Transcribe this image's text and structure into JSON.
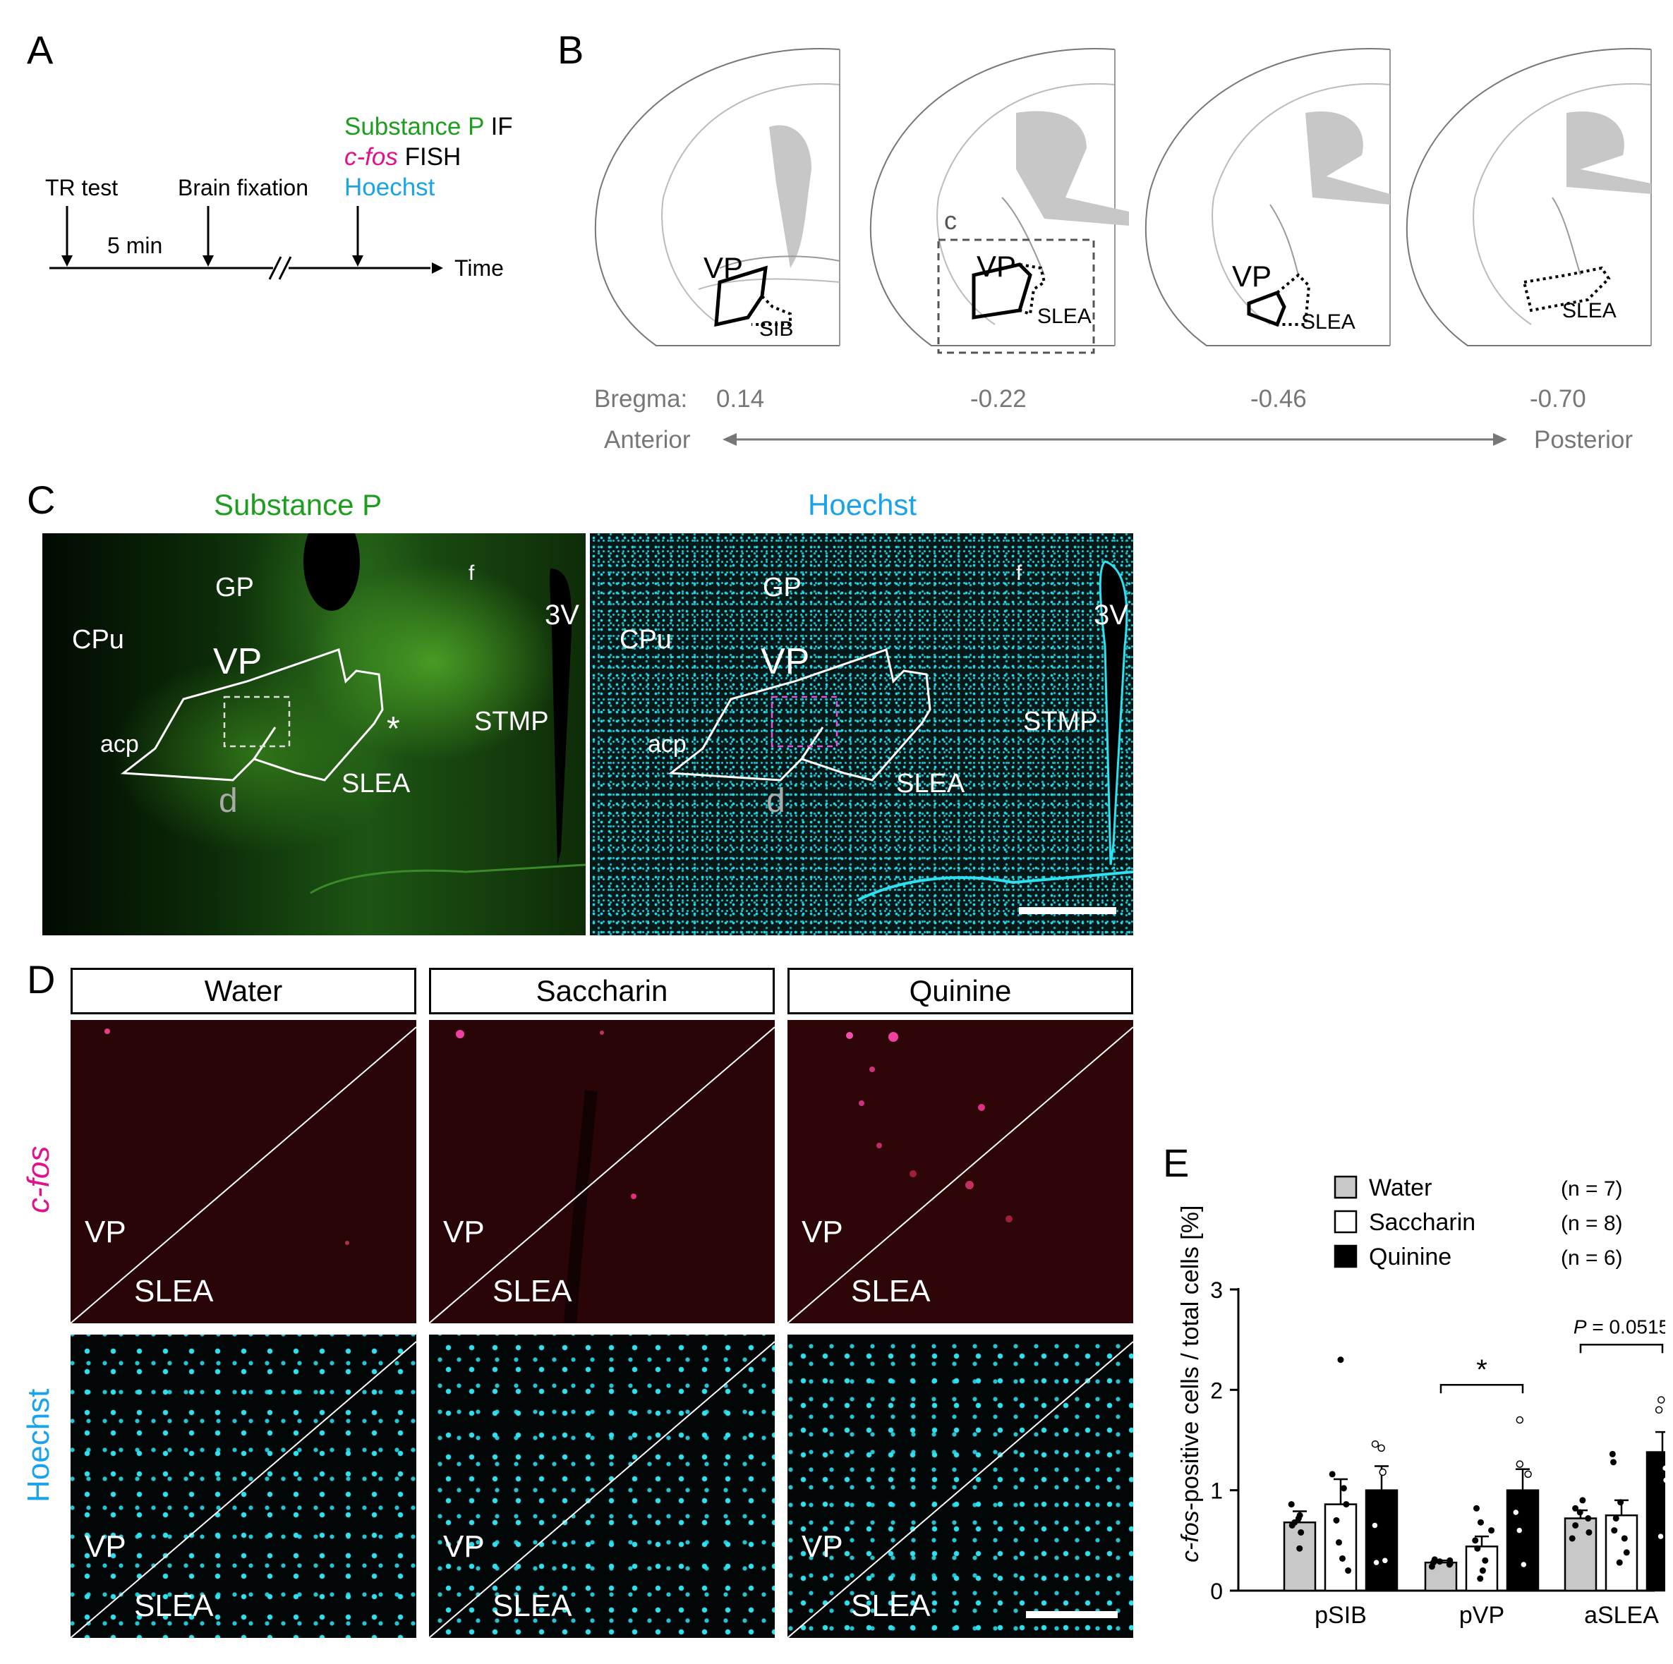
{
  "panelA": {
    "letter": "A",
    "stain_if_word": "Substance P",
    "stain_if_suffix": "IF",
    "stain_fish_word": "c-fos",
    "stain_fish_suffix": "FISH",
    "stain_hoechst": "Hoechst",
    "event_tr": "TR test",
    "event_fix": "Brain fixation",
    "interval": "5 min",
    "axis": "Time",
    "colors": {
      "substance_p": "#1e9e1e",
      "cfos": "#e0118a",
      "hoechst": "#1aa3e8"
    }
  },
  "panelB": {
    "letter": "B",
    "slices": [
      {
        "region": "VP",
        "sub": "SIB",
        "bregma": "0.14"
      },
      {
        "region": "VP",
        "sub": "SLEA",
        "bregma": "-0.22",
        "box_label": "c"
      },
      {
        "region": "VP",
        "sub": "SLEA",
        "bregma": "-0.46"
      },
      {
        "region": "",
        "sub": "SLEA",
        "bregma": "-0.70"
      }
    ],
    "bregma_label": "Bregma:",
    "anterior": "Anterior",
    "posterior": "Posterior"
  },
  "panelC": {
    "letter": "C",
    "left_title": "Substance P",
    "right_title": "Hoechst",
    "labels": {
      "gp": "GP",
      "f": "f",
      "v3": "3V",
      "cpu": "CPu",
      "vp": "VP",
      "acp": "acp",
      "stmp": "STMP",
      "slea": "SLEA",
      "d": "d",
      "star": "*"
    }
  },
  "panelD": {
    "letter": "D",
    "conditions": [
      "Water",
      "Saccharin",
      "Quinine"
    ],
    "row_cfos": "c-fos",
    "row_hoechst": "Hoechst",
    "vp": "VP",
    "slea": "SLEA"
  },
  "panelE": {
    "letter": "E",
    "chart_data": {
      "type": "bar",
      "categories": [
        "pSIB",
        "pVP",
        "aSLEA"
      ],
      "ylabel_italic": "c-fos",
      "ylabel_rest": "-positive cells / total cells [%]",
      "ylim": [
        0,
        3
      ],
      "yticks": [
        "0",
        "1",
        "2",
        "3"
      ],
      "series": [
        {
          "name": "Water",
          "n_label": "(n = 7)",
          "color": "#c8c8c8",
          "values": [
            0.68,
            0.28,
            0.72
          ],
          "errors": [
            0.11,
            0.02,
            0.08
          ],
          "points": [
            [
              0.42,
              0.58,
              0.65,
              0.68,
              0.72,
              0.75,
              0.86
            ],
            [
              0.24,
              0.26,
              0.27,
              0.28,
              0.29,
              0.3,
              0.31
            ],
            [
              0.52,
              0.58,
              0.65,
              0.72,
              0.78,
              0.82,
              0.9
            ]
          ]
        },
        {
          "name": "Saccharin",
          "n_label": "(n = 8)",
          "color": "#ffffff",
          "values": [
            0.86,
            0.44,
            0.75
          ],
          "errors": [
            0.25,
            0.1,
            0.15
          ],
          "points": [
            [
              0.2,
              0.32,
              0.48,
              0.7,
              0.86,
              1.02,
              1.16,
              2.3
            ],
            [
              0.12,
              0.2,
              0.3,
              0.42,
              0.5,
              0.6,
              0.68,
              0.82
            ],
            [
              0.28,
              0.38,
              0.52,
              0.6,
              0.72,
              0.88,
              1.28,
              1.36
            ]
          ]
        },
        {
          "name": "Quinine",
          "n_label": "(n = 6)",
          "color": "#000000",
          "values": [
            1.0,
            1.0,
            1.38
          ],
          "errors": [
            0.24,
            0.21,
            0.2
          ],
          "points": [
            [
              0.28,
              0.3,
              0.65,
              1.18,
              1.42,
              1.46
            ],
            [
              0.26,
              0.6,
              0.78,
              1.16,
              1.26,
              1.7
            ],
            [
              0.54,
              1.1,
              1.22,
              1.42,
              1.8,
              1.9
            ]
          ]
        }
      ],
      "annotations": [
        {
          "between": "pVP",
          "text": "*"
        },
        {
          "between": "aSLEA",
          "text_italic": "P",
          "text_rest": " = 0.0515"
        }
      ],
      "legend_position": "top-right"
    }
  }
}
